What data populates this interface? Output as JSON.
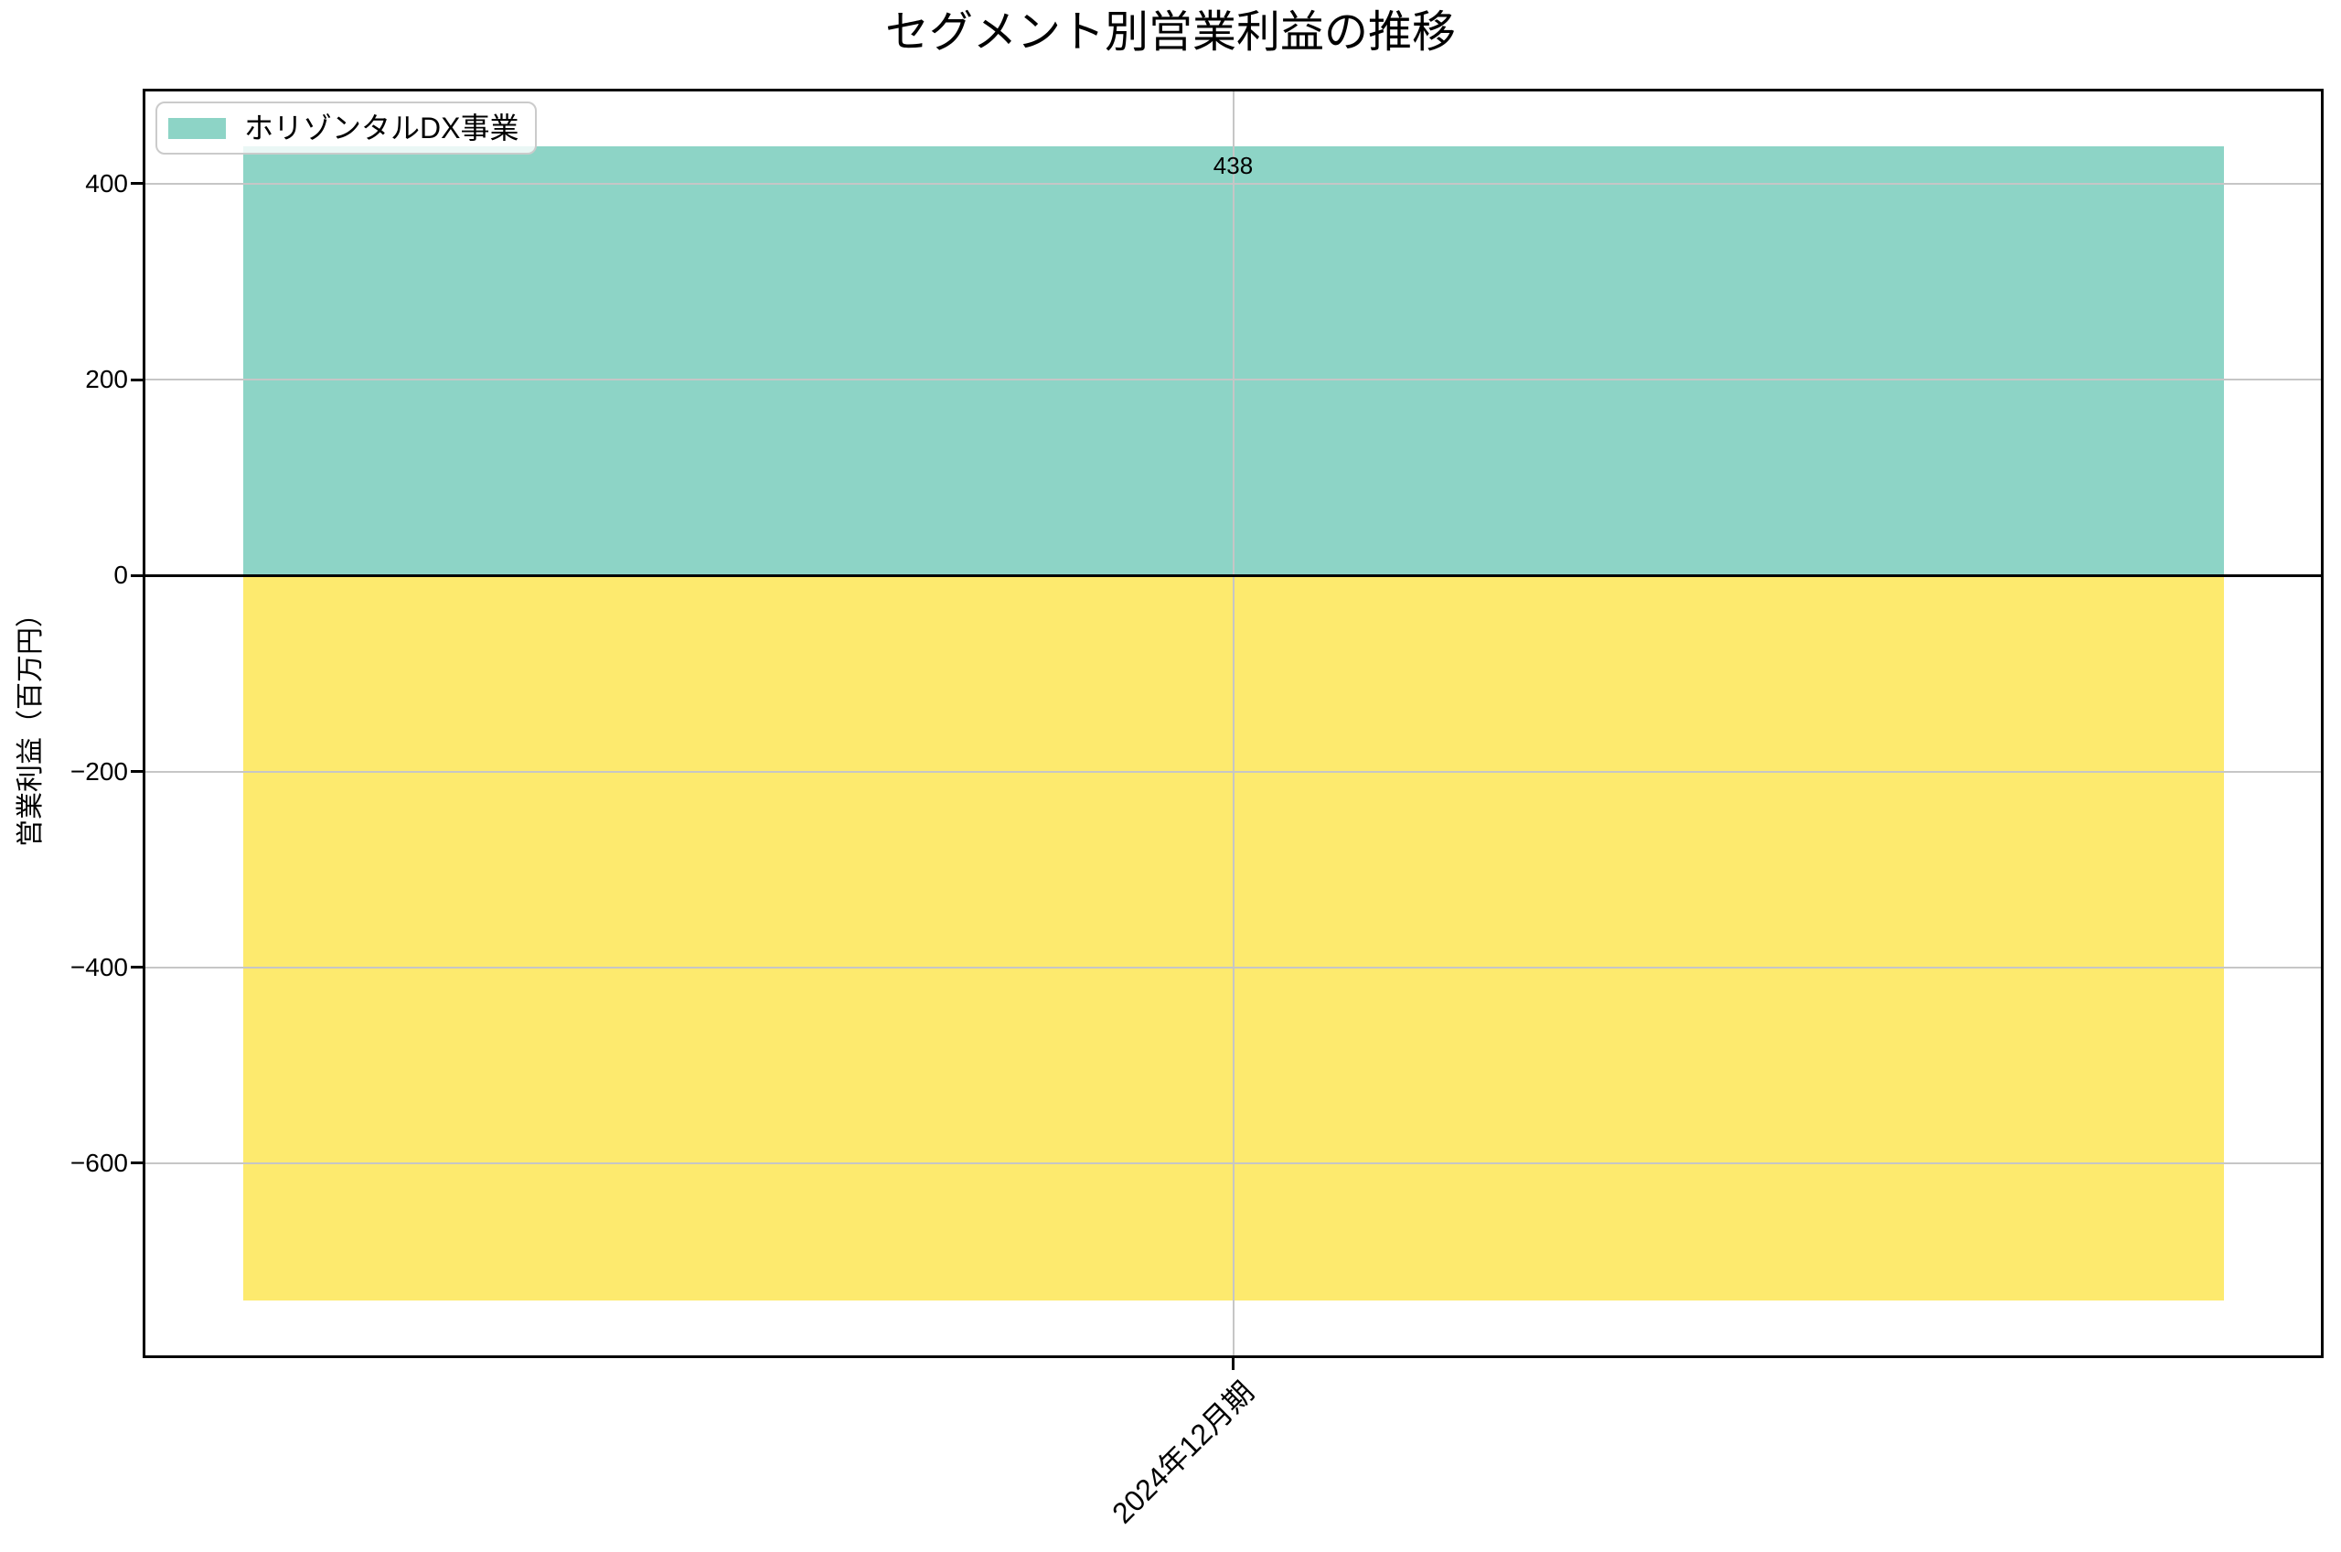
{
  "chart_data": {
    "type": "bar",
    "stacked": true,
    "title": "セグメント別営業利益の推移",
    "xlabel": "",
    "ylabel": "営業利益（百万円）",
    "categories": [
      "2024年12月期"
    ],
    "series": [
      {
        "name": "ホリゾンタルDX事業",
        "color": "#8dd4c6",
        "values": [
          438
        ],
        "bar_labels": [
          "438"
        ],
        "in_legend": true
      },
      {
        "name": "",
        "color": "#fdea6e",
        "values": [
          -740
        ],
        "bar_labels": [],
        "in_legend": false
      }
    ],
    "yticks": [
      400,
      200,
      0,
      -200,
      -400,
      -600
    ],
    "ytick_labels": [
      "400",
      "200",
      "0",
      "−200",
      "−400",
      "−600"
    ],
    "ylim": [
      -799,
      497
    ],
    "grid": true,
    "zero_line": true,
    "legend_position": "upper left",
    "colors": {
      "grid": "#c6c6c6",
      "axis": "#000000",
      "teal_series": "#8dd4c6",
      "yellow_series": "#fdea6e"
    }
  }
}
